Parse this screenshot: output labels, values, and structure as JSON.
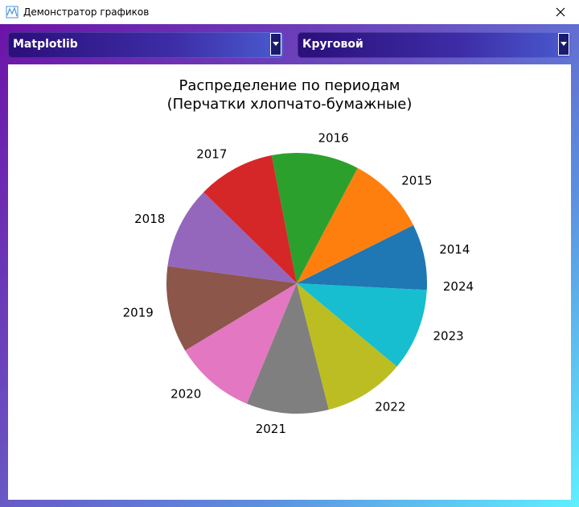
{
  "window": {
    "title": "Демонстратор графиков"
  },
  "controls": {
    "library_select": {
      "value": "Matplotlib"
    },
    "chart_type_select": {
      "value": "Круговой"
    }
  },
  "chart_data": {
    "type": "pie",
    "title": "Распределение по периодам",
    "subtitle": "(Перчатки хлопчато-бумажные)",
    "categories": [
      "2014",
      "2015",
      "2016",
      "2017",
      "2018",
      "2019",
      "2020",
      "2021",
      "2022",
      "2023",
      "2024"
    ],
    "values": [
      7.2,
      9.7,
      10.6,
      9.4,
      10.0,
      10.5,
      9.9,
      10.0,
      9.8,
      10.0,
      0.8
    ],
    "colors": [
      "#1f77b4",
      "#ff7f0e",
      "#2ca02c",
      "#d62728",
      "#9467bd",
      "#8c564b",
      "#e377c2",
      "#7f7f7f",
      "#bcbd22",
      "#17becf",
      "#1f77b4"
    ],
    "start_angle_deg": 0,
    "direction": "counterclockwise",
    "legend": false
  }
}
